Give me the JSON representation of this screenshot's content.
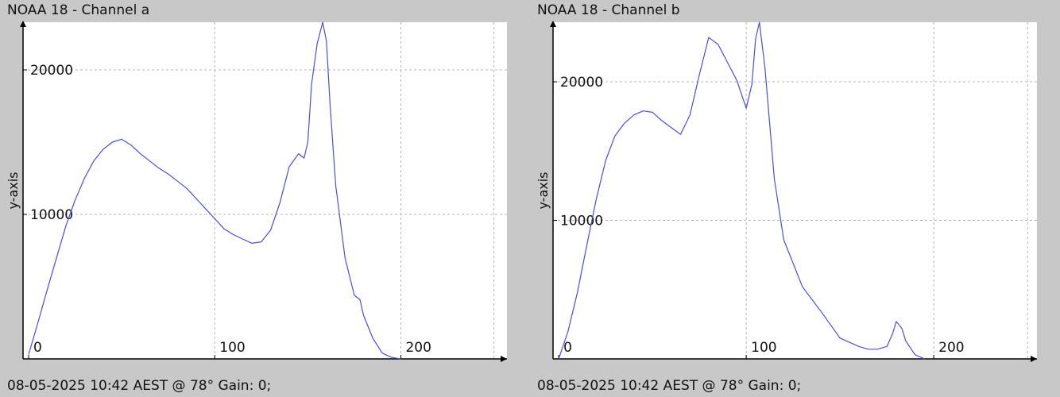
{
  "panels": [
    {
      "title": "NOAA 18 - Channel a",
      "footer": "08-05-2025 10:42 AEST @ 78° Gain: 0;"
    },
    {
      "title": "NOAA 18 - Channel b",
      "footer": "08-05-2025 10:42 AEST @ 78° Gain: 0;"
    }
  ],
  "colors": {
    "plot_background": "#ffffff",
    "window_background": "#c8c8c8",
    "series_line": "#4d4ddc",
    "grid": "#b4b4b4",
    "axis": "#000000"
  },
  "chart_data": [
    {
      "type": "line",
      "title": "NOAA 18 - Channel a",
      "xlabel": "",
      "ylabel": "y-axis",
      "xlim": [
        -3,
        257
      ],
      "ylim": [
        0,
        23300
      ],
      "x_ticks": [
        0,
        100,
        200
      ],
      "y_ticks": [
        10000,
        20000
      ],
      "grid": true,
      "legend": "none",
      "series": [
        {
          "x": [
            0,
            5,
            10,
            15,
            20,
            25,
            30,
            35,
            40,
            45,
            50,
            55,
            60,
            65,
            70,
            75,
            80,
            85,
            90,
            95,
            100,
            105,
            110,
            115,
            120,
            125,
            130,
            135,
            140,
            145,
            148,
            150,
            152,
            155,
            158,
            160,
            162,
            165,
            170,
            175,
            178,
            180,
            185,
            190,
            195,
            200
          ],
          "y": [
            300,
            2500,
            4800,
            7000,
            9200,
            11000,
            12500,
            13700,
            14500,
            15000,
            15200,
            14800,
            14200,
            13700,
            13200,
            12800,
            12300,
            11800,
            11100,
            10400,
            9700,
            9000,
            8600,
            8300,
            8000,
            8100,
            8900,
            10800,
            13300,
            14200,
            13900,
            15000,
            19000,
            21800,
            23300,
            22000,
            17500,
            12000,
            7000,
            4400,
            4100,
            3000,
            1400,
            400,
            100,
            0
          ]
        }
      ]
    },
    {
      "type": "line",
      "title": "NOAA 18 - Channel b",
      "xlabel": "",
      "ylabel": "y-axis",
      "xlim": [
        -3,
        255
      ],
      "ylim": [
        0,
        24300
      ],
      "x_ticks": [
        0,
        100,
        200
      ],
      "y_ticks": [
        10000,
        20000
      ],
      "grid": true,
      "legend": "none",
      "series": [
        {
          "x": [
            0,
            5,
            10,
            15,
            20,
            25,
            30,
            35,
            40,
            45,
            50,
            55,
            60,
            65,
            70,
            75,
            80,
            85,
            90,
            95,
            100,
            103,
            105,
            107,
            110,
            115,
            120,
            130,
            140,
            150,
            160,
            165,
            170,
            175,
            178,
            180,
            183,
            185,
            190,
            195
          ],
          "y": [
            0,
            2000,
            4800,
            8200,
            11500,
            14300,
            16100,
            17000,
            17600,
            17900,
            17800,
            17200,
            16700,
            16200,
            17600,
            20500,
            23200,
            22700,
            21400,
            20100,
            18100,
            19800,
            23100,
            24300,
            21000,
            13000,
            8600,
            5200,
            3400,
            1500,
            900,
            700,
            700,
            900,
            1800,
            2700,
            2200,
            1300,
            300,
            0
          ]
        }
      ]
    }
  ]
}
